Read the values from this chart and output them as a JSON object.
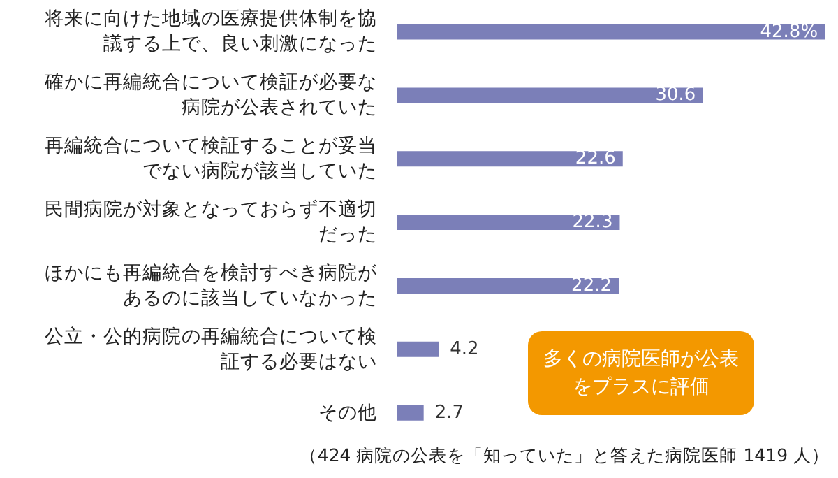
{
  "chart_data": {
    "type": "bar",
    "orientation": "horizontal",
    "categories": [
      "将来に向けた地域の医療提供体制を協議する上で、良い刺激になった",
      "確かに再編統合について検証が必要な病院が公表されていた",
      "再編統合について検証することが妥当でない病院が該当していた",
      "民間病院が対象となっておらず不適切だった",
      "ほかにも再編統合を検討すべき病院があるのに該当していなかった",
      "公立・公的病院の再編統合について検証する必要はない",
      "その他"
    ],
    "values": [
      42.8,
      30.6,
      22.6,
      22.3,
      22.2,
      4.2,
      2.7
    ],
    "value_labels": [
      "42.8%",
      "30.6",
      "22.6",
      "22.3",
      "22.2",
      "4.2",
      "2.7"
    ],
    "color": "#7b7fb8",
    "xlim": [
      0,
      43
    ],
    "tick_labels": "y",
    "annotations": [
      "多くの病院医師が公表をプラスに評価",
      "（424 病院の公表を「知っていた」と答えた病院医師 1419 人）"
    ]
  }
}
